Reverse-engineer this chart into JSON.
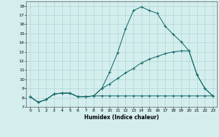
{
  "xlabel": "Humidex (Indice chaleur)",
  "xlim": [
    -0.5,
    23.5
  ],
  "ylim": [
    7,
    18.5
  ],
  "yticks": [
    7,
    8,
    9,
    10,
    11,
    12,
    13,
    14,
    15,
    16,
    17,
    18
  ],
  "xticks": [
    0,
    1,
    2,
    3,
    4,
    5,
    6,
    7,
    8,
    9,
    10,
    11,
    12,
    13,
    14,
    15,
    16,
    17,
    18,
    19,
    20,
    21,
    22,
    23
  ],
  "bg_color": "#d4eeee",
  "grid_color": "#aed4d4",
  "line_color": "#1a6b6b",
  "line1_x": [
    0,
    1,
    2,
    3,
    4,
    5,
    6,
    7,
    8,
    9,
    10,
    11,
    12,
    13,
    14,
    15,
    16,
    17,
    18,
    19,
    20,
    21,
    22,
    23
  ],
  "line1_y": [
    8.1,
    7.5,
    7.8,
    8.4,
    8.5,
    8.5,
    8.1,
    8.1,
    8.2,
    9.0,
    10.8,
    12.9,
    15.5,
    17.5,
    17.9,
    17.5,
    17.2,
    15.8,
    14.9,
    14.1,
    13.1,
    10.5,
    9.0,
    8.2
  ],
  "line2_x": [
    0,
    1,
    2,
    3,
    4,
    5,
    6,
    7,
    8,
    9,
    10,
    11,
    12,
    13,
    14,
    15,
    16,
    17,
    18,
    19,
    20,
    21,
    22,
    23
  ],
  "line2_y": [
    8.1,
    7.5,
    7.8,
    8.4,
    8.5,
    8.5,
    8.1,
    8.1,
    8.2,
    8.2,
    8.2,
    8.2,
    8.2,
    8.2,
    8.2,
    8.2,
    8.2,
    8.2,
    8.2,
    8.2,
    8.2,
    8.2,
    8.2,
    8.2
  ],
  "line3_x": [
    0,
    1,
    2,
    3,
    4,
    5,
    6,
    7,
    8,
    9,
    10,
    11,
    12,
    13,
    14,
    15,
    16,
    17,
    18,
    19,
    20,
    21,
    22,
    23
  ],
  "line3_y": [
    8.1,
    7.5,
    7.8,
    8.4,
    8.5,
    8.5,
    8.1,
    8.1,
    8.2,
    9.0,
    9.5,
    10.1,
    10.7,
    11.2,
    11.8,
    12.2,
    12.5,
    12.8,
    13.0,
    13.1,
    13.1,
    10.5,
    9.0,
    8.2
  ]
}
